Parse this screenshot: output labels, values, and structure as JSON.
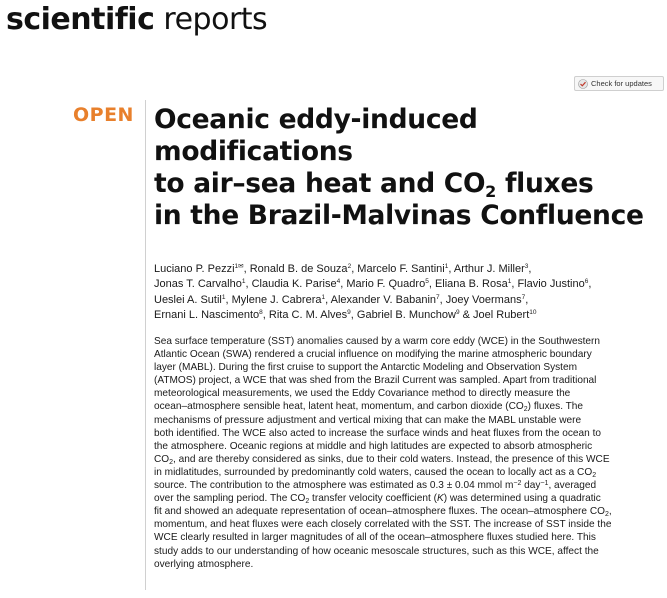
{
  "journal": {
    "part1": "scientific",
    "part2": " reports"
  },
  "check_updates": {
    "label": "Check for updates"
  },
  "open_label": "OPEN",
  "title": {
    "l1": "Oceanic eddy-induced",
    "l2": "modifications",
    "l3a": "to air–sea heat and CO",
    "l3sub": "2",
    "l3b": " fluxes",
    "l4": "in the Brazil-Malvinas Confluence"
  },
  "authors": {
    "a1": "Luciano P. Pezzi",
    "a1s": "1✉",
    "a2": ", Ronald B. de Souza",
    "a2s": "2",
    "a3": ", Marcelo F. Santini",
    "a3s": "1",
    "a4": ", Arthur J. Miller",
    "a4s": "3",
    "a5": ",",
    "b1": "Jonas T. Carvalho",
    "b1s": "1",
    "b2": ", Claudia K. Parise",
    "b2s": "4",
    "b3": ", Mario F. Quadro",
    "b3s": "5",
    "b4": ", Eliana B. Rosa",
    "b4s": "1",
    "b5": ", Flavio Justino",
    "b5s": "6",
    "b6": ",",
    "c1": "Ueslei A. Sutil",
    "c1s": "1",
    "c2": ", Mylene J. Cabrera",
    "c2s": "1",
    "c3": ", Alexander V. Babanin",
    "c3s": "7",
    "c4": ", Joey Voermans",
    "c4s": "7",
    "c5": ",",
    "d1": "Ernani L. Nascimento",
    "d1s": "8",
    "d2": ", Rita C. M. Alves",
    "d2s": "9",
    "d3": ", Gabriel B. Munchow",
    "d3s": "9",
    "d4": " & Joel Rubert",
    "d4s": "10"
  },
  "abstract": {
    "l1": "Sea surface temperature (SST) anomalies caused by a warm core eddy (WCE) in the Southwestern",
    "l2": "Atlantic Ocean (SWA) rendered a crucial influence on modifying the marine atmospheric boundary",
    "l3": "layer (MABL). During the first cruise to support the Antarctic Modeling and Observation System",
    "l4": "(ATMOS) project, a WCE that was shed from the Brazil Current was sampled. Apart from traditional",
    "l5": "meteorological measurements, we used the Eddy Covariance method to directly measure the",
    "l6a": "ocean–atmosphere sensible heat, latent heat, momentum, and carbon dioxide (CO",
    "l6sub": "2",
    "l6b": ") fluxes. The",
    "l7": "mechanisms of pressure adjustment and vertical mixing that can make the MABL unstable were",
    "l8": "both identified. The WCE also acted to increase the surface winds and heat fluxes from the ocean to",
    "l9": "the atmosphere. Oceanic regions at middle and high latitudes are expected to absorb atmospheric",
    "l10a": "CO",
    "l10sub": "2",
    "l10b": ", and are thereby considered as sinks, due to their cold waters. Instead, the presence of this WCE",
    "l11a": "in midlatitudes, surrounded by predominantly cold waters, caused the ocean to locally act as a CO",
    "l11sub": "2",
    "l12a": "source. The contribution to the atmosphere was estimated as 0.3 ± 0.04 mmol m",
    "l12sup1": "−2",
    "l12b": " day",
    "l12sup2": "−1",
    "l12c": ", averaged",
    "l13": "over the sampling period. The CO",
    "l13sub": "2",
    "l13b": " transfer velocity coefficient (",
    "l13k": "K",
    "l13c": ") was determined using a quadratic",
    "l14a": "fit and showed an adequate representation of ocean–atmosphere fluxes. The ocean–atmosphere CO",
    "l14sub": "2",
    "l14b": ",",
    "l15": "momentum, and heat fluxes were each closely correlated with the SST. The increase of SST inside the",
    "l16": "WCE clearly resulted in larger magnitudes of all of the ocean–atmosphere fluxes studied here. This",
    "l17": "study adds to our understanding of how oceanic mesoscale structures, such as this WCE, affect the",
    "l18": "overlying atmosphere."
  },
  "colors": {
    "open": "#e8802c",
    "text": "#1a1a1a"
  }
}
